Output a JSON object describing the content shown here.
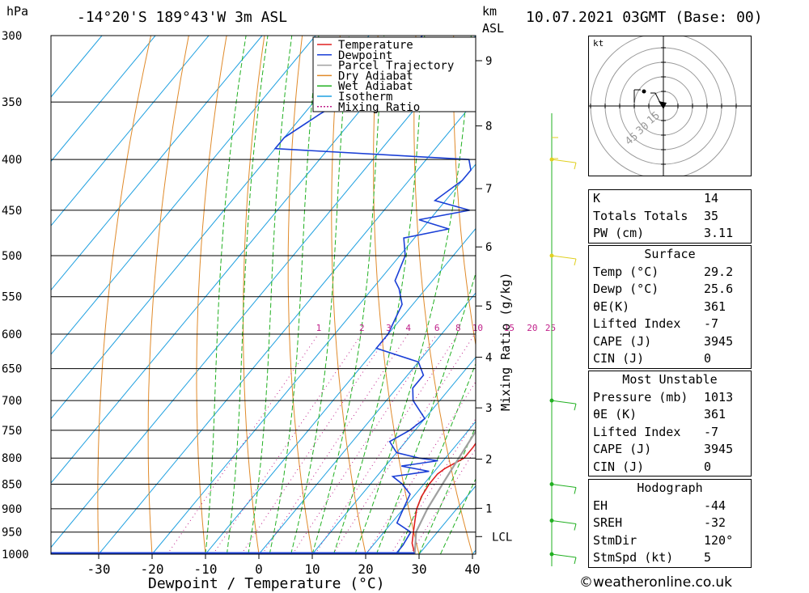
{
  "header": {
    "pressure_unit": "hPa",
    "location": "-14°20'S  189°43'W  3m  ASL",
    "height_unit_km": "km",
    "height_unit_asl": "ASL",
    "datetime": "10.07.2021  03GMT  (Base: 00)"
  },
  "legend": {
    "items": [
      {
        "label": "Temperature",
        "color": "#e02020",
        "style": "solid"
      },
      {
        "label": "Dewpoint",
        "color": "#1a3fd6",
        "style": "solid"
      },
      {
        "label": "Parcel Trajectory",
        "color": "#a0a0a0",
        "style": "solid"
      },
      {
        "label": "Dry Adiabat",
        "color": "#e08a2a",
        "style": "solid"
      },
      {
        "label": "Wet Adiabat",
        "color": "#22b022",
        "style": "solid"
      },
      {
        "label": "Isotherm",
        "color": "#1ea0e0",
        "style": "solid"
      },
      {
        "label": "Mixing Ratio",
        "color": "#c0208a",
        "style": "dotted"
      }
    ]
  },
  "chart_data": {
    "type": "line",
    "xlabel": "Dewpoint / Temperature (°C)",
    "ylabel_right": "Mixing Ratio (g/kg)",
    "x_ticks": [
      -30,
      -20,
      -10,
      0,
      10,
      20,
      30,
      40
    ],
    "pressure_levels": [
      300,
      350,
      400,
      450,
      500,
      550,
      600,
      650,
      700,
      750,
      800,
      850,
      900,
      950,
      1000
    ],
    "km_ticks": [
      {
        "label": "9",
        "p": 318
      },
      {
        "label": "8",
        "p": 370
      },
      {
        "label": "7",
        "p": 428
      },
      {
        "label": "6",
        "p": 490
      },
      {
        "label": "5",
        "p": 562
      },
      {
        "label": "4",
        "p": 633
      },
      {
        "label": "3",
        "p": 712
      },
      {
        "label": "2",
        "p": 802
      },
      {
        "label": "1",
        "p": 899
      },
      {
        "label": "LCL",
        "p": 960
      }
    ],
    "mixing_ratio_labels": [
      "1",
      "2",
      "3",
      "4",
      "6",
      "8",
      "10",
      "15",
      "20",
      "25"
    ],
    "series": [
      {
        "name": "Temperature",
        "points": [
          [
            1000,
            29.2
          ],
          [
            975,
            27
          ],
          [
            950,
            25.5
          ],
          [
            925,
            24
          ],
          [
            900,
            22.5
          ],
          [
            875,
            21.5
          ],
          [
            850,
            21
          ],
          [
            830,
            21
          ],
          [
            820,
            21.5
          ],
          [
            800,
            23.5
          ],
          [
            780,
            23.5
          ],
          [
            750,
            23
          ],
          [
            700,
            19.5
          ],
          [
            650,
            15
          ],
          [
            600,
            10.5
          ],
          [
            550,
            4
          ],
          [
            500,
            -2
          ],
          [
            450,
            -9
          ],
          [
            420,
            -14
          ],
          [
            400,
            -18
          ],
          [
            380,
            -22
          ],
          [
            350,
            -26
          ],
          [
            320,
            -30
          ],
          [
            300,
            -33
          ]
        ]
      },
      {
        "name": "Dewpoint",
        "points": [
          [
            1000,
            25.6
          ],
          [
            980,
            25.6
          ],
          [
            950,
            25
          ],
          [
            930,
            21
          ],
          [
            900,
            20
          ],
          [
            870,
            19
          ],
          [
            850,
            16
          ],
          [
            835,
            13
          ],
          [
            825,
            19
          ],
          [
            815,
            13
          ],
          [
            805,
            19
          ],
          [
            800,
            15
          ],
          [
            790,
            10
          ],
          [
            770,
            7
          ],
          [
            750,
            9
          ],
          [
            730,
            10
          ],
          [
            700,
            5
          ],
          [
            680,
            3
          ],
          [
            660,
            3
          ],
          [
            640,
            0
          ],
          [
            620,
            -10
          ],
          [
            600,
            -10
          ],
          [
            580,
            -11
          ],
          [
            560,
            -12
          ],
          [
            540,
            -15
          ],
          [
            530,
            -17
          ],
          [
            500,
            -19
          ],
          [
            480,
            -22
          ],
          [
            470,
            -15
          ],
          [
            460,
            -22
          ],
          [
            450,
            -14
          ],
          [
            440,
            -22
          ],
          [
            420,
            -20
          ],
          [
            410,
            -20
          ],
          [
            400,
            -22
          ],
          [
            390,
            -60
          ],
          [
            380,
            -60
          ],
          [
            360,
            -57
          ],
          [
            340,
            -53
          ],
          [
            320,
            -52
          ],
          [
            310,
            -50
          ],
          [
            300,
            -50
          ]
        ]
      },
      {
        "name": "Parcel Trajectory",
        "points": [
          [
            1000,
            29.2
          ],
          [
            950,
            26
          ],
          [
            900,
            24.5
          ],
          [
            850,
            23.5
          ],
          [
            800,
            22.5
          ],
          [
            750,
            21.5
          ],
          [
            700,
            20
          ],
          [
            650,
            18
          ],
          [
            600,
            15.5
          ],
          [
            550,
            12.5
          ],
          [
            500,
            9
          ],
          [
            450,
            5
          ],
          [
            400,
            0
          ],
          [
            360,
            -5
          ]
        ]
      }
    ]
  },
  "hodograph": {
    "unit_label": "kt",
    "ring_labels": [
      "15",
      "30",
      "45"
    ],
    "points": [
      [
        -1,
        2
      ],
      [
        -2,
        4
      ],
      [
        -3,
        4
      ]
    ]
  },
  "indices": {
    "top": [
      {
        "label": "K",
        "value": "14"
      },
      {
        "label": "Totals Totals",
        "value": "35"
      },
      {
        "label": "PW (cm)",
        "value": "3.11"
      }
    ],
    "surface": {
      "title": "Surface",
      "rows": [
        {
          "label": "Temp (°C)",
          "value": "29.2"
        },
        {
          "label": "Dewp (°C)",
          "value": "25.6"
        },
        {
          "label": "θE(K)",
          "value": "361"
        },
        {
          "label": "Lifted Index",
          "value": "-7"
        },
        {
          "label": "CAPE (J)",
          "value": "3945"
        },
        {
          "label": "CIN (J)",
          "value": "0"
        }
      ]
    },
    "most_unstable": {
      "title": "Most Unstable",
      "rows": [
        {
          "label": "Pressure (mb)",
          "value": "1013"
        },
        {
          "label": "θE (K)",
          "value": "361"
        },
        {
          "label": "Lifted Index",
          "value": "-7"
        },
        {
          "label": "CAPE (J)",
          "value": "3945"
        },
        {
          "label": "CIN (J)",
          "value": "0"
        }
      ]
    },
    "hodograph": {
      "title": "Hodograph",
      "rows": [
        {
          "label": "EH",
          "value": "-44"
        },
        {
          "label": "SREH",
          "value": "-32"
        },
        {
          "label": "StmDir",
          "value": "120°"
        },
        {
          "label": "StmSpd (kt)",
          "value": "5"
        }
      ]
    }
  },
  "footer": {
    "copyright": "©weatheronline.co.uk"
  }
}
